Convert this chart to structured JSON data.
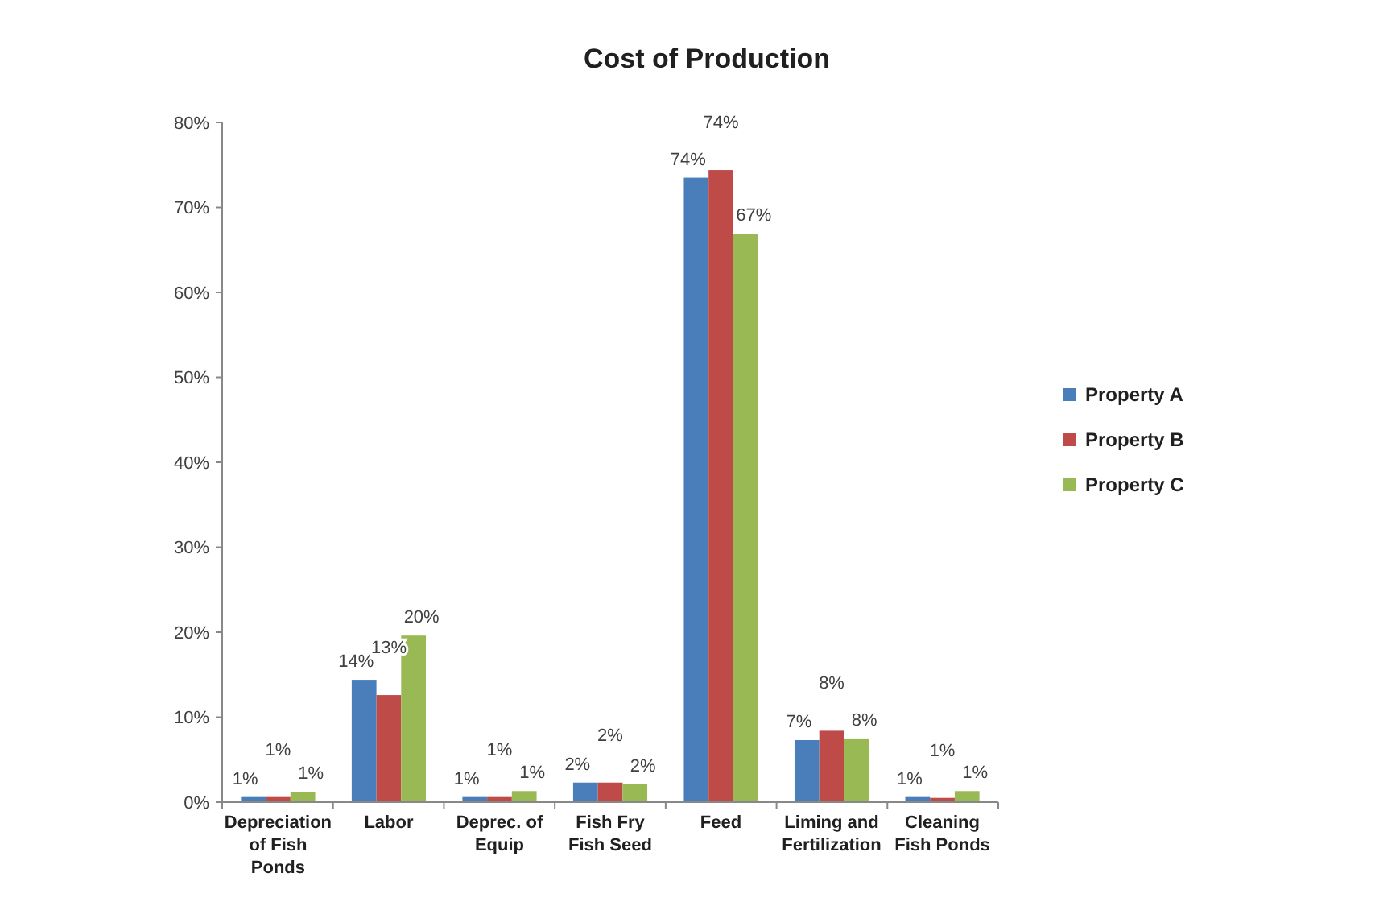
{
  "chart_data": {
    "type": "bar",
    "title": "Cost of Production",
    "categories": [
      "Depreciation of Fish Ponds",
      "Labor",
      "Deprec. of Equip",
      "Fish Fry Fish Seed",
      "Feed",
      "Liming and Fertilization",
      "Cleaning Fish Ponds"
    ],
    "series": [
      {
        "name": "Property A",
        "color": "#4a7ebb",
        "values": [
          0.6,
          14.4,
          0.6,
          2.3,
          73.5,
          7.3,
          0.6
        ],
        "value_labels": [
          "1%",
          "14%",
          "1%",
          "2%",
          "74%",
          "7%",
          "1%"
        ]
      },
      {
        "name": "Property B",
        "color": "#be4b48",
        "values": [
          0.6,
          12.6,
          0.6,
          2.3,
          74.4,
          8.4,
          0.5
        ],
        "value_labels": [
          "1%",
          "13%",
          "1%",
          "2%",
          "74%",
          "8%",
          "1%"
        ]
      },
      {
        "name": "Property C",
        "color": "#98b954",
        "values": [
          1.2,
          19.6,
          1.3,
          2.1,
          66.9,
          7.5,
          1.3
        ],
        "value_labels": [
          "1%",
          "20%",
          "1%",
          "2%",
          "67%",
          "8%",
          "1%"
        ]
      }
    ],
    "ylim": [
      0,
      80
    ],
    "yticks": [
      {
        "value": 0,
        "label": "0%"
      },
      {
        "value": 10,
        "label": "10%"
      },
      {
        "value": 20,
        "label": "20%"
      },
      {
        "value": 30,
        "label": "30%"
      },
      {
        "value": 40,
        "label": "40%"
      },
      {
        "value": 50,
        "label": "50%"
      },
      {
        "value": 60,
        "label": "60%"
      },
      {
        "value": 70,
        "label": "70%"
      },
      {
        "value": 80,
        "label": "80%"
      }
    ],
    "legend": "right",
    "grid": false
  }
}
